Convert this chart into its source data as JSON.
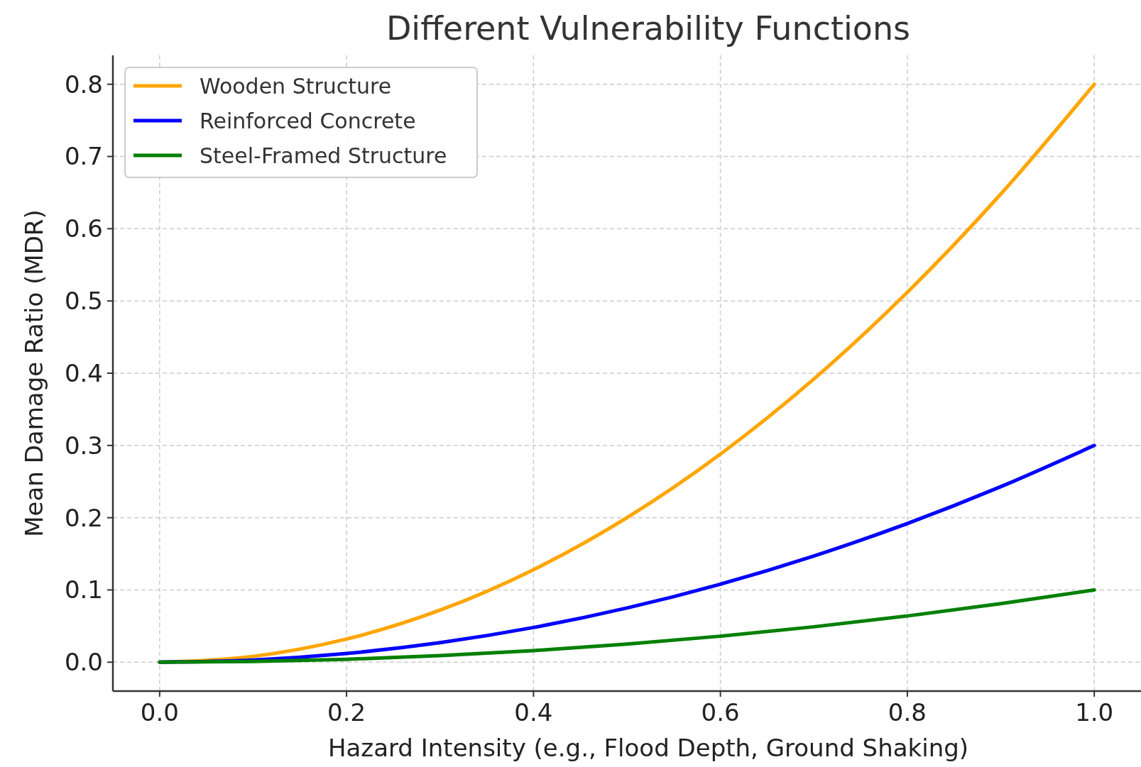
{
  "chart_data": {
    "type": "line",
    "title": "Different Vulnerability Functions",
    "xlabel": "Hazard Intensity (e.g., Flood Depth, Ground Shaking)",
    "ylabel": "Mean Damage Ratio (MDR)",
    "x": [
      0,
      0.1,
      0.2,
      0.3,
      0.4,
      0.5,
      0.6,
      0.7,
      0.8,
      0.9,
      1.0
    ],
    "series": [
      {
        "name": "Wooden Structure",
        "color": "#ffa500",
        "values": [
          0,
          0.008,
          0.032,
          0.072,
          0.128,
          0.2,
          0.288,
          0.392,
          0.512,
          0.648,
          0.8
        ]
      },
      {
        "name": "Reinforced Concrete",
        "color": "#0000ff",
        "values": [
          0,
          0.003,
          0.012,
          0.027,
          0.048,
          0.075,
          0.108,
          0.147,
          0.192,
          0.243,
          0.3
        ]
      },
      {
        "name": "Steel-Framed Structure",
        "color": "#008000",
        "values": [
          0,
          0.001,
          0.004,
          0.009,
          0.016,
          0.025,
          0.036,
          0.049,
          0.064,
          0.081,
          0.1
        ]
      }
    ],
    "xlim": [
      -0.05,
      1.05
    ],
    "ylim": [
      -0.04,
      0.84
    ],
    "xticks": [
      {
        "value": 0,
        "label": "0.0"
      },
      {
        "value": 0.2,
        "label": "0.2"
      },
      {
        "value": 0.4,
        "label": "0.4"
      },
      {
        "value": 0.6,
        "label": "0.6"
      },
      {
        "value": 0.8,
        "label": "0.8"
      },
      {
        "value": 1,
        "label": "1.0"
      }
    ],
    "yticks": [
      {
        "value": 0,
        "label": "0.0"
      },
      {
        "value": 0.1,
        "label": "0.1"
      },
      {
        "value": 0.2,
        "label": "0.2"
      },
      {
        "value": 0.3,
        "label": "0.3"
      },
      {
        "value": 0.4,
        "label": "0.4"
      },
      {
        "value": 0.5,
        "label": "0.5"
      },
      {
        "value": 0.6,
        "label": "0.6"
      },
      {
        "value": 0.7,
        "label": "0.7"
      },
      {
        "value": 0.8,
        "label": "0.8"
      }
    ],
    "grid": true,
    "legend": "top left",
    "line_style": "solid",
    "marker": "none"
  }
}
